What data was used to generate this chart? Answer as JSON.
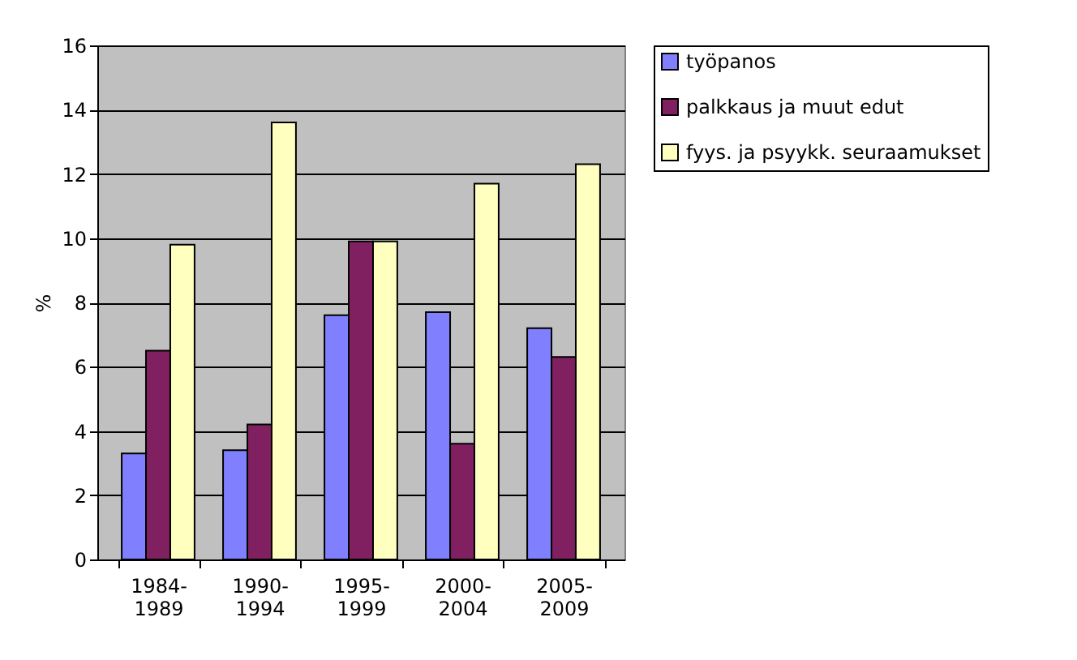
{
  "chart_data": {
    "type": "bar",
    "ylabel": "%",
    "categories": [
      "1984-1989",
      "1990-1994",
      "1995-1999",
      "2000-2004",
      "2005-2009"
    ],
    "series": [
      {
        "name": "työpanos",
        "color": "#8080ff",
        "values": [
          3.3,
          3.4,
          7.6,
          7.7,
          7.2
        ]
      },
      {
        "name": "palkkaus ja muut edut",
        "color": "#802060",
        "values": [
          6.5,
          4.2,
          9.9,
          3.6,
          6.3
        ]
      },
      {
        "name": "fyys. ja psyykk. seuraamukset",
        "color": "#ffffc0",
        "values": [
          9.8,
          13.6,
          9.9,
          11.7,
          12.3
        ]
      }
    ],
    "ylim": [
      0,
      16
    ],
    "yticks": [
      0,
      2,
      4,
      6,
      8,
      10,
      12,
      14,
      16
    ],
    "grid": "y",
    "legend": "right"
  }
}
